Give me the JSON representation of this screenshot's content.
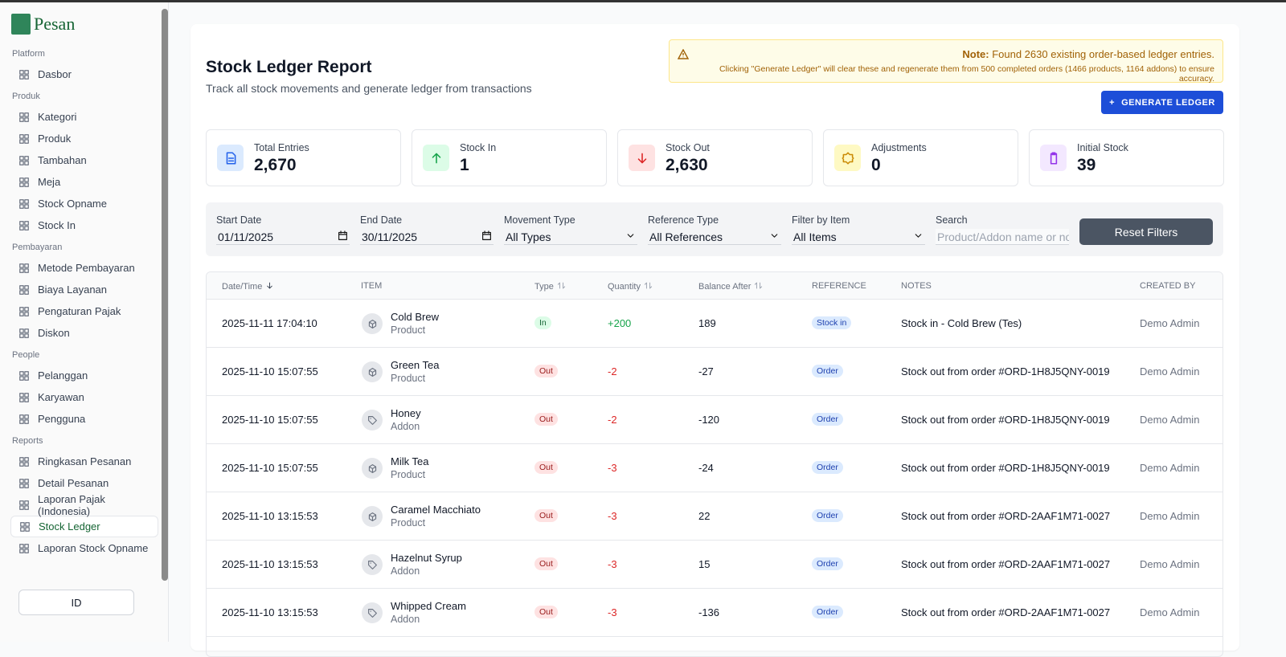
{
  "sidebar": {
    "brand": "Pesan",
    "groups": [
      {
        "label": "Platform",
        "items": [
          "Dasbor"
        ]
      },
      {
        "label": "Produk",
        "items": [
          "Kategori",
          "Produk",
          "Tambahan",
          "Meja",
          "Stock Opname",
          "Stock In"
        ]
      },
      {
        "label": "Pembayaran",
        "items": [
          "Metode Pembayaran",
          "Biaya Layanan",
          "Pengaturan Pajak",
          "Diskon"
        ]
      },
      {
        "label": "People",
        "items": [
          "Pelanggan",
          "Karyawan",
          "Pengguna"
        ]
      },
      {
        "label": "Reports",
        "items": [
          "Ringkasan Pesanan",
          "Detail Pesanan",
          "Laporan Pajak (Indonesia)",
          "Stock Ledger",
          "Laporan Stock Opname"
        ]
      }
    ],
    "active_item": "Stock Ledger",
    "language": "ID"
  },
  "header": {
    "title": "Stock Ledger Report",
    "subtitle": "Track all stock movements and generate ledger from transactions"
  },
  "note": {
    "label": "Note:",
    "text": "Found 2630 existing order-based ledger entries.",
    "detail": "Clicking \"Generate Ledger\" will clear these and regenerate them from 500 completed orders (1466 products, 1164 addons) to ensure accuracy."
  },
  "generate_button": "GENERATE LEDGER",
  "stats": [
    {
      "label": "Total Entries",
      "value": "2,670"
    },
    {
      "label": "Stock In",
      "value": "1"
    },
    {
      "label": "Stock Out",
      "value": "2,630"
    },
    {
      "label": "Adjustments",
      "value": "0"
    },
    {
      "label": "Initial Stock",
      "value": "39"
    }
  ],
  "filters": {
    "fields": [
      {
        "label": "Start Date",
        "value": "01/11/2025"
      },
      {
        "label": "End Date",
        "value": "30/11/2025"
      },
      {
        "label": "Movement Type",
        "value": "All Types"
      },
      {
        "label": "Reference Type",
        "value": "All References"
      },
      {
        "label": "Filter by Item",
        "value": "All Items"
      },
      {
        "label": "Search",
        "placeholder": "Product/Addon name or no"
      }
    ],
    "reset_button": "Reset Filters"
  },
  "table": {
    "columns": [
      "Date/Time",
      "ITEM",
      "Type",
      "Quantity",
      "Balance After",
      "REFERENCE",
      "NOTES",
      "CREATED BY"
    ],
    "rows": [
      {
        "date": "2025-11-11 17:04:10",
        "item": "Cold Brew",
        "kind": "Product",
        "type": "In",
        "quantity": "+200",
        "balance": "189",
        "reference": "Stock in",
        "notes": "Stock in - Cold Brew (Tes)",
        "created_by": "Demo Admin"
      },
      {
        "date": "2025-11-10 15:07:55",
        "item": "Green Tea",
        "kind": "Product",
        "type": "Out",
        "quantity": "-2",
        "balance": "-27",
        "reference": "Order",
        "notes": "Stock out from order #ORD-1H8J5QNY-0019",
        "created_by": "Demo Admin"
      },
      {
        "date": "2025-11-10 15:07:55",
        "item": "Honey",
        "kind": "Addon",
        "type": "Out",
        "quantity": "-2",
        "balance": "-120",
        "reference": "Order",
        "notes": "Stock out from order #ORD-1H8J5QNY-0019",
        "created_by": "Demo Admin"
      },
      {
        "date": "2025-11-10 15:07:55",
        "item": "Milk Tea",
        "kind": "Product",
        "type": "Out",
        "quantity": "-3",
        "balance": "-24",
        "reference": "Order",
        "notes": "Stock out from order #ORD-1H8J5QNY-0019",
        "created_by": "Demo Admin"
      },
      {
        "date": "2025-11-10 13:15:53",
        "item": "Caramel Macchiato",
        "kind": "Product",
        "type": "Out",
        "quantity": "-3",
        "balance": "22",
        "reference": "Order",
        "notes": "Stock out from order #ORD-2AAF1M71-0027",
        "created_by": "Demo Admin"
      },
      {
        "date": "2025-11-10 13:15:53",
        "item": "Hazelnut Syrup",
        "kind": "Addon",
        "type": "Out",
        "quantity": "-3",
        "balance": "15",
        "reference": "Order",
        "notes": "Stock out from order #ORD-2AAF1M71-0027",
        "created_by": "Demo Admin"
      },
      {
        "date": "2025-11-10 13:15:53",
        "item": "Whipped Cream",
        "kind": "Addon",
        "type": "Out",
        "quantity": "-3",
        "balance": "-136",
        "reference": "Order",
        "notes": "Stock out from order #ORD-2AAF1M71-0027",
        "created_by": "Demo Admin"
      }
    ]
  }
}
